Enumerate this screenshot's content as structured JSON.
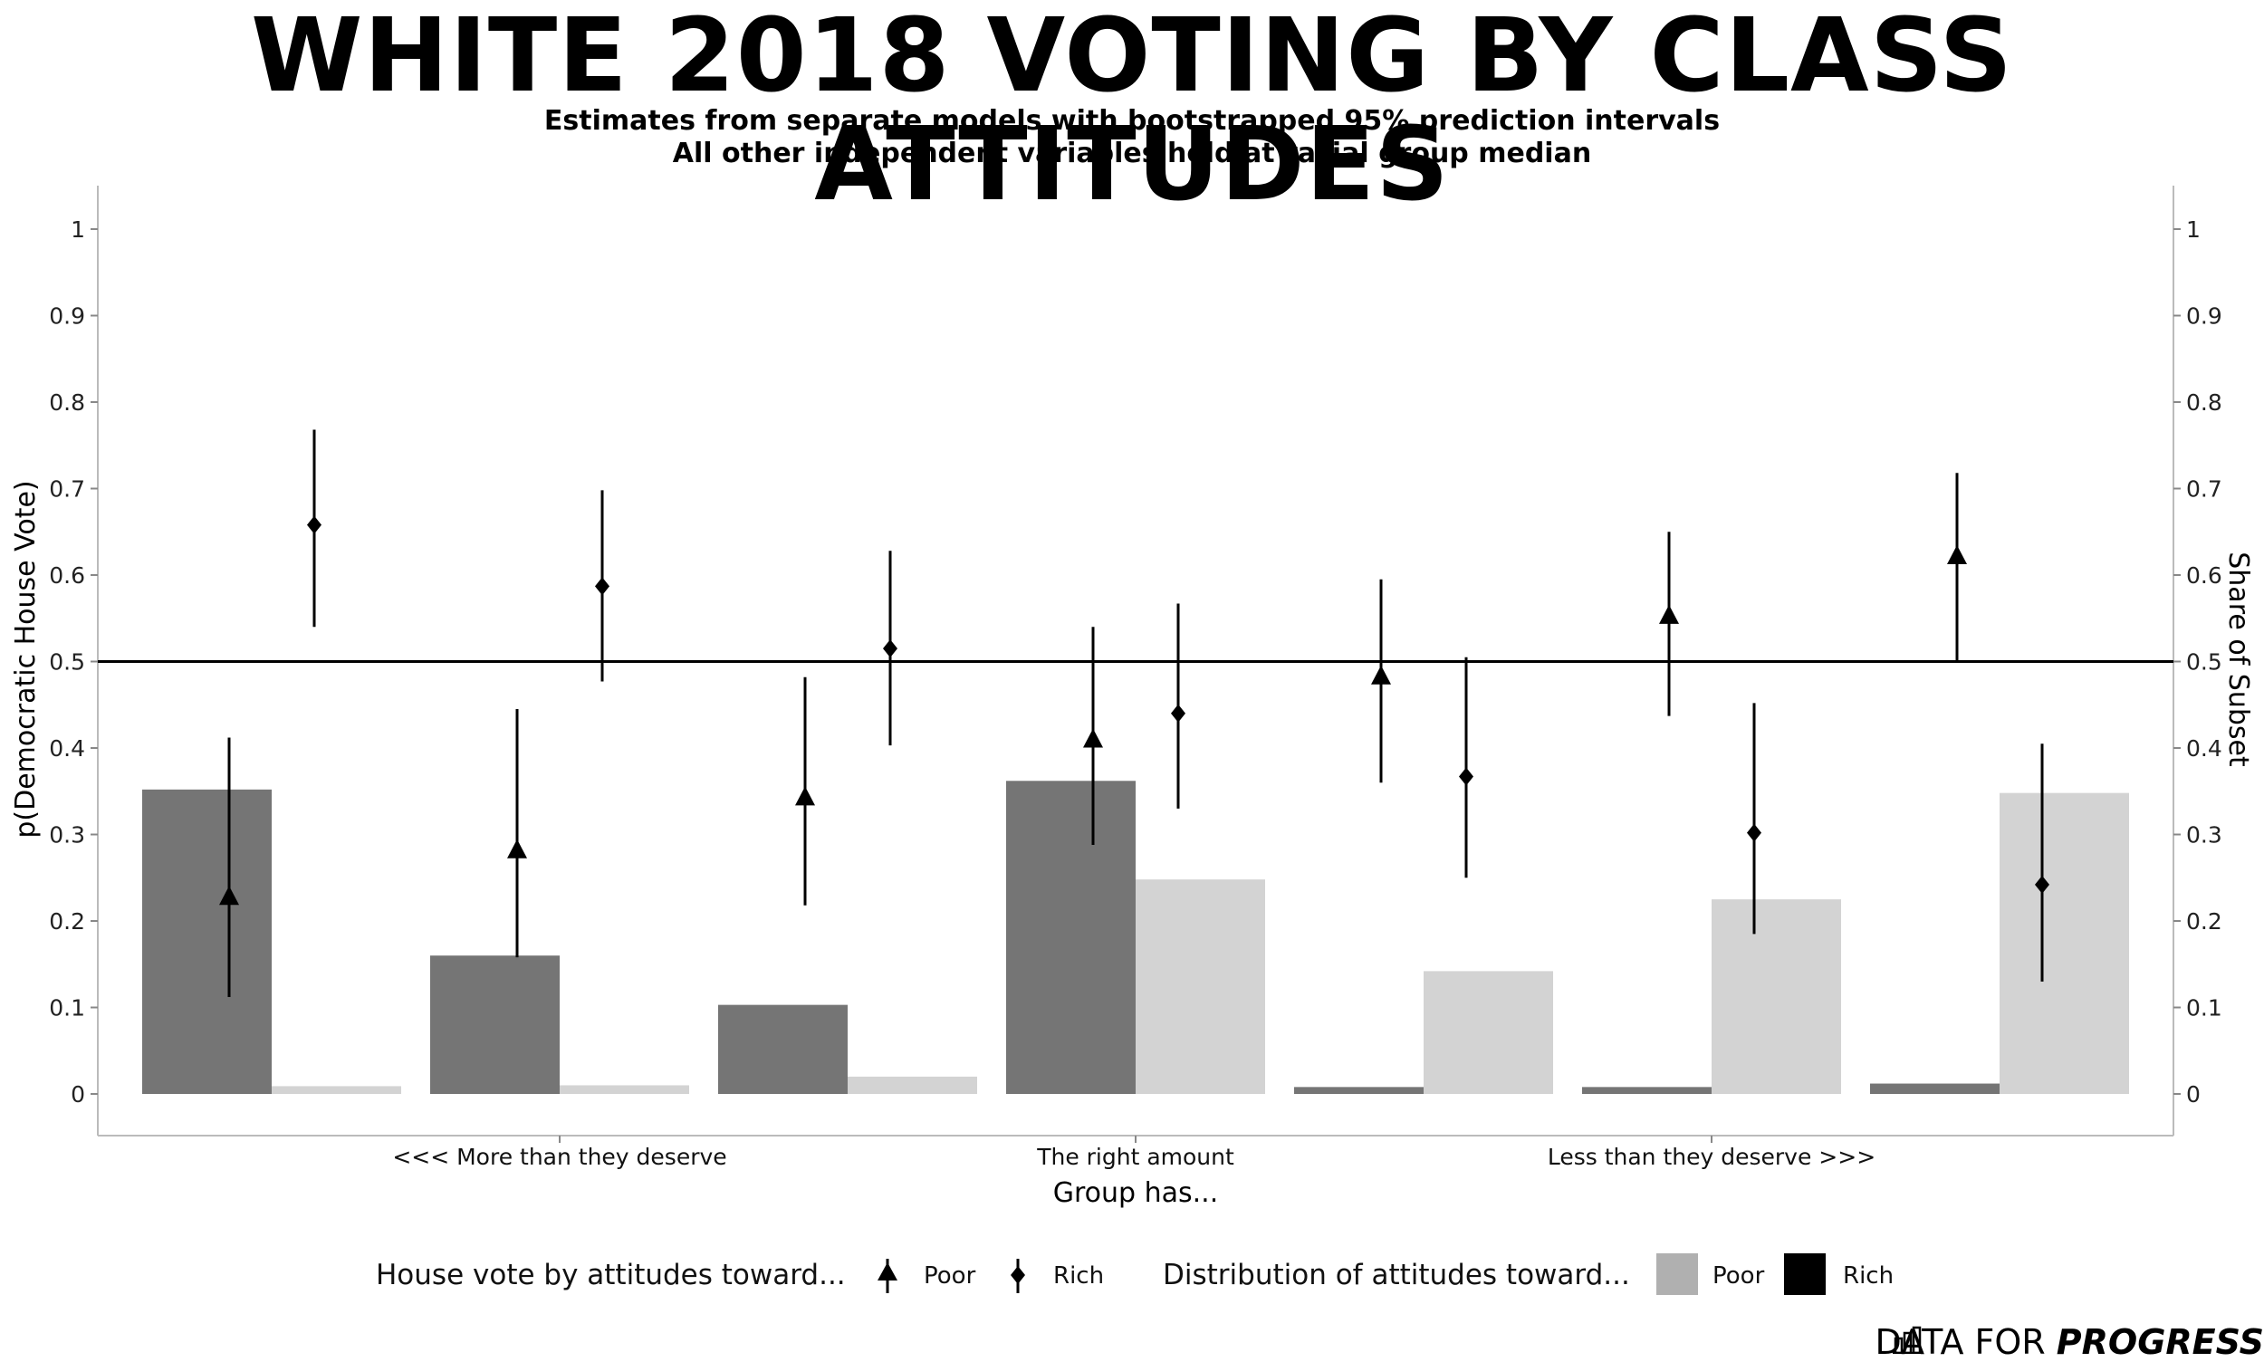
{
  "title": "WHITE 2018 VOTING BY CLASS ATTITUDES",
  "subtitle_lines": [
    "Estimates from separate models with bootstrapped 95% prediction intervals",
    "All other independent variables held at racial group median"
  ],
  "brand": {
    "part1": "DATA FOR ",
    "part2": "PROGRESS",
    "icon": "bar-chart-icon"
  },
  "chart_data": {
    "type": "bar",
    "xlabel": "Group has...",
    "ylabel": "p(Democratic House Vote)",
    "ylabel_right": "Share of Subset",
    "ylim": [
      -0.05,
      1.05
    ],
    "yticks": [
      0,
      0.1,
      0.2,
      0.3,
      0.4,
      0.5,
      0.6,
      0.7,
      0.8,
      0.9,
      1
    ],
    "ytick_labels": [
      "0",
      "0.1",
      "0.2",
      "0.3",
      "0.4",
      "0.5",
      "0.6",
      "0.7",
      "0.8",
      "0.9",
      "1"
    ],
    "reference_line": 0.5,
    "grid": false,
    "categories": [
      "1",
      "2",
      "3",
      "4",
      "5",
      "6",
      "7"
    ],
    "category_labels": [
      {
        "position": 2,
        "text": "<<< More than they deserve"
      },
      {
        "position": 4,
        "text": "The right amount"
      },
      {
        "position": 6,
        "text": "Less than they deserve >>>"
      }
    ],
    "bar_series": [
      {
        "name": "Rich",
        "color": "#757575",
        "values": [
          0.352,
          0.16,
          0.103,
          0.362,
          0.008,
          0.008,
          0.012
        ]
      },
      {
        "name": "Poor",
        "color": "#d3d3d3",
        "values": [
          0.009,
          0.01,
          0.02,
          0.248,
          0.142,
          0.225,
          0.348
        ]
      }
    ],
    "point_series": [
      {
        "name": "Poor",
        "marker": "triangle",
        "values": [
          0.228,
          0.282,
          0.343,
          0.41,
          0.483,
          0.553,
          0.622
        ],
        "lower": [
          0.112,
          0.158,
          0.218,
          0.288,
          0.36,
          0.437,
          0.5
        ],
        "upper": [
          0.412,
          0.445,
          0.482,
          0.54,
          0.595,
          0.65,
          0.718
        ]
      },
      {
        "name": "Rich",
        "marker": "diamond",
        "values": [
          0.658,
          0.587,
          0.515,
          0.44,
          0.367,
          0.302,
          0.242
        ],
        "lower": [
          0.54,
          0.477,
          0.403,
          0.33,
          0.25,
          0.185,
          0.13
        ],
        "upper": [
          0.768,
          0.698,
          0.628,
          0.567,
          0.505,
          0.452,
          0.405
        ]
      }
    ],
    "legend": {
      "placement": "bottom",
      "vote_title": "House vote by attitudes toward...",
      "vote_items": [
        "Poor",
        "Rich"
      ],
      "dist_title": "Distribution of attitudes toward...",
      "dist_items": [
        {
          "label": "Poor",
          "color": "#b0b0b0"
        },
        {
          "label": "Rich",
          "color": "#000000"
        }
      ]
    }
  }
}
